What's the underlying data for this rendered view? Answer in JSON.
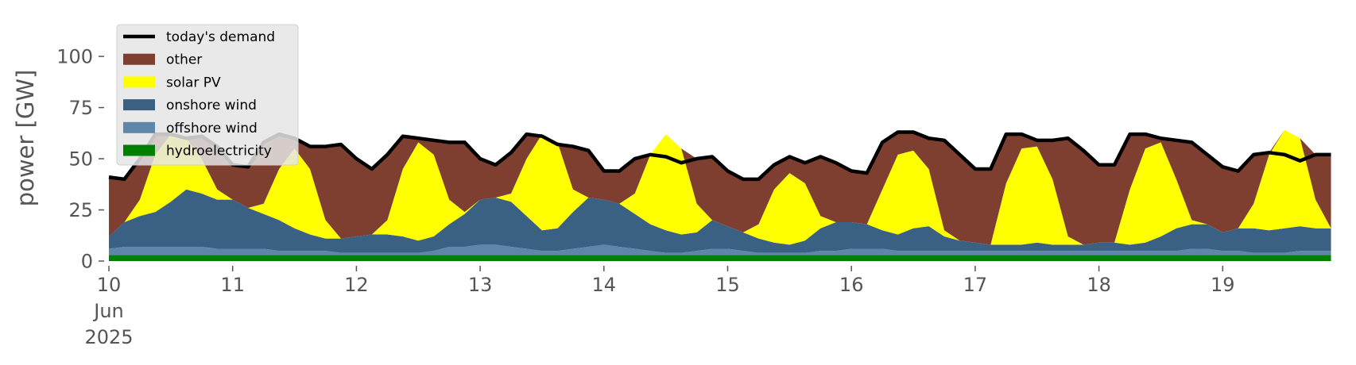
{
  "chart_data": {
    "type": "stacked_area",
    "y_label": "power [GW]",
    "legend": "upper left",
    "xlim": [
      10,
      20
    ],
    "ylim": [
      0,
      120
    ],
    "yticks": [
      0,
      25,
      50,
      75,
      100
    ],
    "xticks": [
      {
        "value": 10,
        "label": "10\nJun\n2025"
      },
      11,
      12,
      13,
      14,
      15,
      16,
      17,
      18,
      19
    ],
    "x": [
      10,
      10.125,
      10.25,
      10.375,
      10.5,
      10.625,
      10.75,
      10.875,
      11,
      11.125,
      11.25,
      11.375,
      11.5,
      11.625,
      11.75,
      11.875,
      12,
      12.125,
      12.25,
      12.375,
      12.5,
      12.625,
      12.75,
      12.875,
      13,
      13.125,
      13.25,
      13.375,
      13.5,
      13.625,
      13.75,
      13.875,
      14,
      14.125,
      14.25,
      14.375,
      14.5,
      14.625,
      14.75,
      14.875,
      15,
      15.125,
      15.25,
      15.375,
      15.5,
      15.625,
      15.75,
      15.875,
      16,
      16.125,
      16.25,
      16.375,
      16.5,
      16.625,
      16.75,
      16.875,
      17,
      17.125,
      17.25,
      17.375,
      17.5,
      17.625,
      17.75,
      17.875,
      18,
      18.125,
      18.25,
      18.375,
      18.5,
      18.625,
      18.75,
      18.875,
      19,
      19.125,
      19.25,
      19.375,
      19.5,
      19.625,
      19.75,
      19.875
    ],
    "series": [
      {
        "name": "today's demand",
        "kind": "line",
        "color": "#000000",
        "values": [
          41,
          40,
          50,
          62,
          62,
          60,
          61,
          56,
          47,
          46,
          58,
          62,
          60,
          56,
          56,
          57,
          50,
          45,
          52,
          61,
          60,
          59,
          58,
          58,
          50,
          47,
          53,
          62,
          61,
          57,
          56,
          54,
          44,
          44,
          50,
          52,
          51,
          48,
          50,
          51,
          44,
          40,
          40,
          47,
          51,
          48,
          51,
          48,
          44,
          43,
          58,
          63,
          63,
          60,
          59,
          52,
          45,
          45,
          62,
          62,
          59,
          59,
          60,
          54,
          47,
          47,
          62,
          62,
          60,
          59,
          58,
          52,
          46,
          44,
          52,
          53,
          52,
          49,
          52,
          52
        ]
      },
      {
        "name": "other",
        "kind": "area",
        "color": "#7f3f30",
        "values": [
          29,
          21,
          20,
          10,
          0,
          0,
          11,
          21,
          17,
          20,
          30,
          17,
          5,
          11,
          36,
          46,
          38,
          32,
          32,
          16,
          2,
          7,
          28,
          34,
          20,
          16,
          20,
          12,
          0,
          0,
          21,
          23,
          14,
          16,
          17,
          0,
          0,
          0,
          22,
          31,
          27,
          26,
          22,
          12,
          8,
          10,
          29,
          29,
          25,
          25,
          23,
          11,
          9,
          15,
          44,
          42,
          36,
          37,
          24,
          7,
          3,
          19,
          48,
          46,
          38,
          38,
          27,
          7,
          2,
          19,
          38,
          34,
          32,
          28,
          24,
          1,
          0,
          0,
          22,
          36
        ]
      },
      {
        "name": "solar PV",
        "kind": "area",
        "color": "#ffff00",
        "values": [
          0,
          0,
          8,
          28,
          33,
          25,
          17,
          5,
          0,
          0,
          5,
          25,
          39,
          32,
          9,
          0,
          0,
          0,
          7,
          33,
          48,
          40,
          12,
          1,
          0,
          0,
          4,
          28,
          47,
          42,
          11,
          0,
          0,
          0,
          10,
          34,
          47,
          42,
          14,
          0,
          0,
          0,
          7,
          26,
          35,
          28,
          6,
          0,
          0,
          0,
          20,
          39,
          38,
          28,
          3,
          0,
          0,
          0,
          30,
          47,
          47,
          32,
          4,
          0,
          0,
          0,
          27,
          46,
          46,
          24,
          2,
          0,
          0,
          0,
          12,
          37,
          48,
          43,
          14,
          0
        ]
      },
      {
        "name": "onshore wind",
        "kind": "area",
        "color": "#3a6183",
        "values": [
          6,
          12,
          15,
          17,
          22,
          28,
          26,
          24,
          24,
          20,
          17,
          15,
          11,
          8,
          6,
          7,
          8,
          9,
          9,
          8,
          6,
          7,
          11,
          16,
          22,
          23,
          22,
          16,
          10,
          11,
          18,
          24,
          22,
          21,
          17,
          13,
          11,
          9,
          9,
          14,
          11,
          9,
          7,
          5,
          4,
          6,
          11,
          14,
          13,
          12,
          9,
          8,
          11,
          12,
          7,
          5,
          4,
          3,
          3,
          3,
          4,
          3,
          3,
          3,
          4,
          4,
          3,
          4,
          7,
          11,
          12,
          12,
          9,
          11,
          12,
          11,
          12,
          12,
          11,
          11
        ]
      },
      {
        "name": "offshore wind",
        "kind": "area",
        "color": "#5f86aa",
        "values": [
          3,
          4,
          4,
          4,
          4,
          4,
          4,
          3,
          3,
          3,
          3,
          2,
          2,
          2,
          2,
          1,
          1,
          1,
          1,
          1,
          1,
          2,
          4,
          4,
          5,
          5,
          4,
          3,
          2,
          2,
          3,
          4,
          5,
          4,
          3,
          2,
          1,
          1,
          2,
          3,
          3,
          2,
          1,
          1,
          1,
          1,
          2,
          2,
          3,
          3,
          3,
          2,
          2,
          2,
          2,
          2,
          2,
          2,
          2,
          2,
          2,
          2,
          2,
          2,
          2,
          2,
          2,
          2,
          2,
          2,
          3,
          3,
          2,
          2,
          1,
          1,
          1,
          2,
          2,
          2
        ]
      },
      {
        "name": "hydroelectricity",
        "kind": "area",
        "color": "#008000",
        "values": [
          3,
          3,
          3,
          3,
          3,
          3,
          3,
          3,
          3,
          3,
          3,
          3,
          3,
          3,
          3,
          3,
          3,
          3,
          3,
          3,
          3,
          3,
          3,
          3,
          3,
          3,
          3,
          3,
          3,
          3,
          3,
          3,
          3,
          3,
          3,
          3,
          3,
          3,
          3,
          3,
          3,
          3,
          3,
          3,
          3,
          3,
          3,
          3,
          3,
          3,
          3,
          3,
          3,
          3,
          3,
          3,
          3,
          3,
          3,
          3,
          3,
          3,
          3,
          3,
          3,
          3,
          3,
          3,
          3,
          3,
          3,
          3,
          3,
          3,
          3,
          3,
          3,
          3,
          3,
          3
        ]
      }
    ]
  }
}
